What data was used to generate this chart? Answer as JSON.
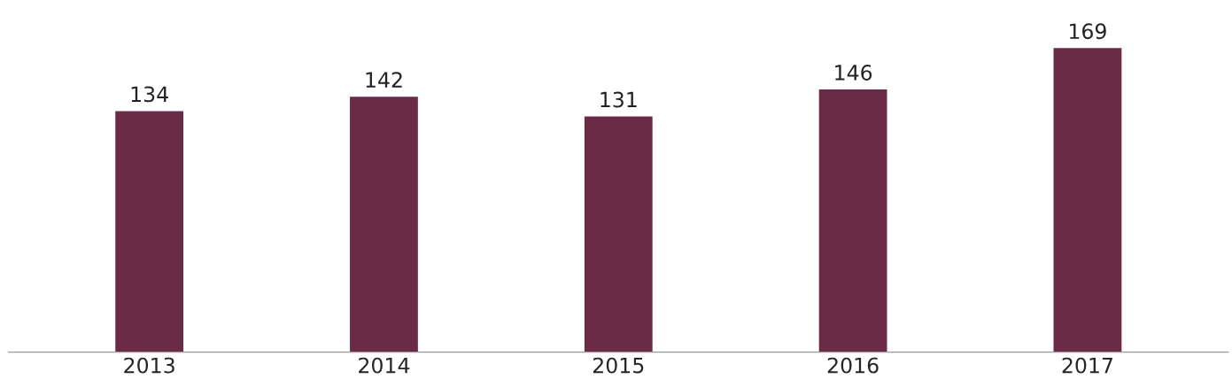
{
  "chart_data": {
    "type": "bar",
    "categories": [
      "2013",
      "2014",
      "2015",
      "2016",
      "2017"
    ],
    "values": [
      134,
      142,
      131,
      146,
      169
    ],
    "color": "#6b2a45",
    "data_labels": true
  }
}
